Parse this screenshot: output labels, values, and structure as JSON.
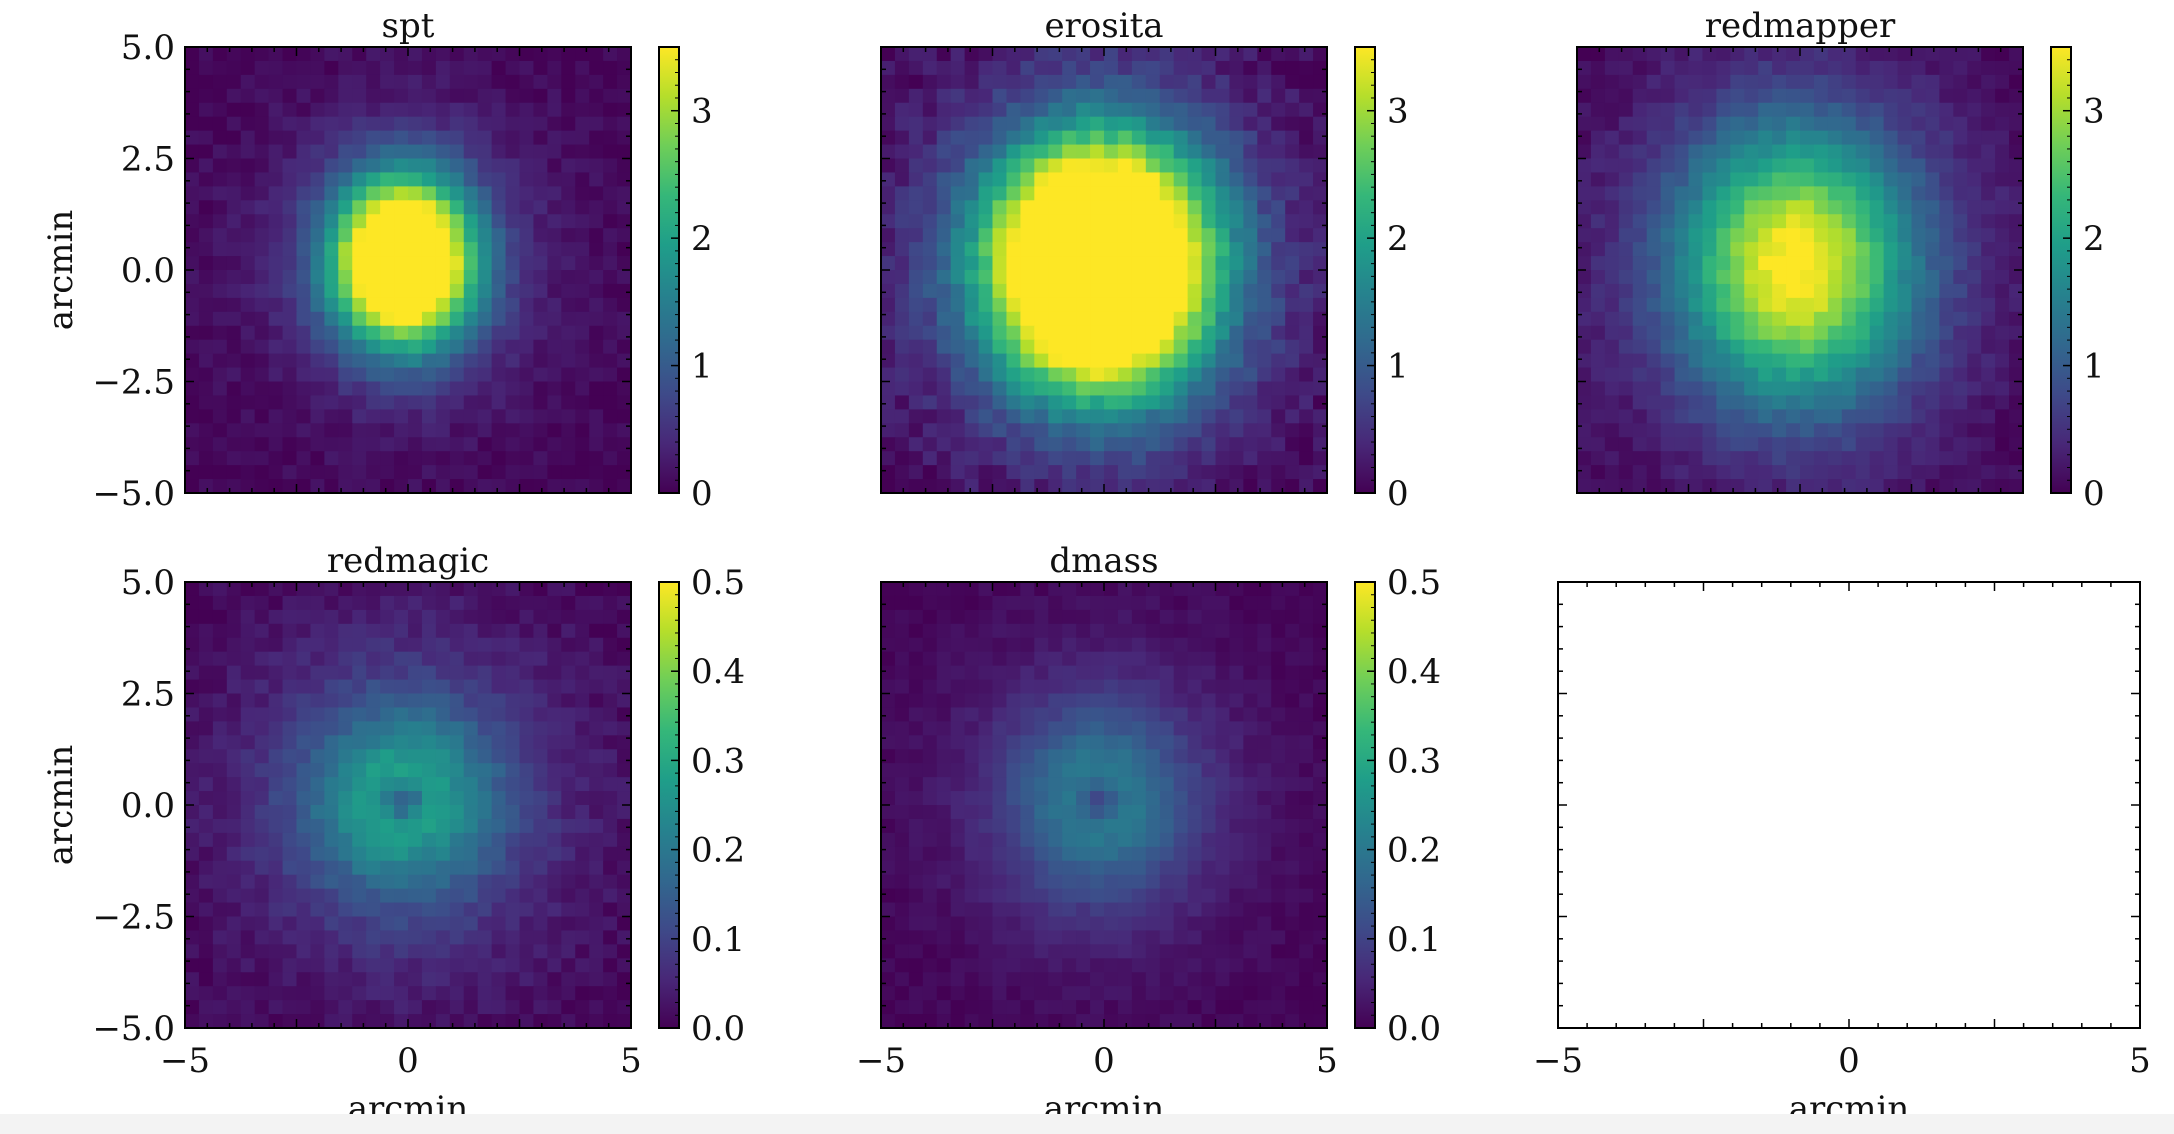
{
  "figure": {
    "colormap": "viridis",
    "background": "#ffffff"
  },
  "chart_data": [
    {
      "type": "heatmap",
      "title": "spt",
      "xlabel": "",
      "ylabel": "arcmin",
      "xlim": [
        -5,
        5
      ],
      "ylim": [
        -5,
        5
      ],
      "yticks": [
        "5.0",
        "2.5",
        "0.0",
        "−2.5",
        "−5.0"
      ],
      "xticks": [],
      "colorbar": {
        "vmin": 0,
        "vmax": 3.5,
        "ticks": [
          "3",
          "2",
          "1",
          "0"
        ]
      },
      "field": {
        "center": [
          -0.1,
          0.2
        ],
        "peak": 5.2,
        "sigma_x": 1.1,
        "sigma_y": 1.3,
        "halo_amp": 0.45,
        "halo_sigma": 2.8,
        "ring": 0
      }
    },
    {
      "type": "heatmap",
      "title": "erosita",
      "xlabel": "",
      "ylabel": "",
      "xlim": [
        -5,
        5
      ],
      "ylim": [
        -5,
        5
      ],
      "yticks": [],
      "xticks": [],
      "colorbar": {
        "vmin": 0,
        "vmax": 3.5,
        "ticks": [
          "3",
          "2",
          "1",
          "0"
        ]
      },
      "field": {
        "center": [
          -0.1,
          0.1
        ],
        "peak": 6.0,
        "sigma_x": 1.7,
        "sigma_y": 1.9,
        "halo_amp": 0.8,
        "halo_sigma": 3.2,
        "ring": 0
      }
    },
    {
      "type": "heatmap",
      "title": "redmapper",
      "xlabel": "",
      "ylabel": "",
      "xlim": [
        -5,
        5
      ],
      "ylim": [
        -5,
        5
      ],
      "yticks": [],
      "xticks": [],
      "colorbar": {
        "vmin": 0,
        "vmax": 3.5,
        "ticks": [
          "3",
          "2",
          "1",
          "0"
        ]
      },
      "field": {
        "center": [
          -0.1,
          0.1
        ],
        "peak": 3.0,
        "sigma_x": 1.8,
        "sigma_y": 2.1,
        "halo_amp": 0.6,
        "halo_sigma": 3.3,
        "ring": 0
      }
    },
    {
      "type": "heatmap",
      "title": "redmagic",
      "xlabel": "arcmin",
      "ylabel": "arcmin",
      "xlim": [
        -5,
        5
      ],
      "ylim": [
        -5,
        5
      ],
      "yticks": [
        "5.0",
        "2.5",
        "0.0",
        "−2.5",
        "−5.0"
      ],
      "xticks": [
        "−5",
        "0",
        "5"
      ],
      "colorbar": {
        "vmin": 0,
        "vmax": 0.5,
        "ticks": [
          "0.5",
          "0.4",
          "0.3",
          "0.2",
          "0.1",
          "0.0"
        ]
      },
      "field": {
        "center": [
          -0.1,
          0.1
        ],
        "peak": 0.21,
        "sigma_x": 1.5,
        "sigma_y": 1.5,
        "halo_amp": 0.1,
        "halo_sigma": 3.0,
        "ring": 0.75
      }
    },
    {
      "type": "heatmap",
      "title": "dmass",
      "xlabel": "arcmin",
      "ylabel": "",
      "xlim": [
        -5,
        5
      ],
      "ylim": [
        -5,
        5
      ],
      "yticks": [],
      "xticks": [
        "−5",
        "0",
        "5"
      ],
      "colorbar": {
        "vmin": 0,
        "vmax": 0.5,
        "ticks": [
          "0.5",
          "0.4",
          "0.3",
          "0.2",
          "0.1",
          "0.0"
        ]
      },
      "field": {
        "center": [
          -0.1,
          0.1
        ],
        "peak": 0.17,
        "sigma_x": 1.4,
        "sigma_y": 1.5,
        "halo_amp": 0.06,
        "halo_sigma": 2.8,
        "ring": 0.7
      }
    },
    {
      "type": "empty",
      "title": "",
      "xlabel": "arcmin",
      "ylabel": "",
      "xlim": [
        -5,
        5
      ],
      "xticks": [
        "−5",
        "0",
        "5"
      ],
      "yticks": []
    }
  ]
}
